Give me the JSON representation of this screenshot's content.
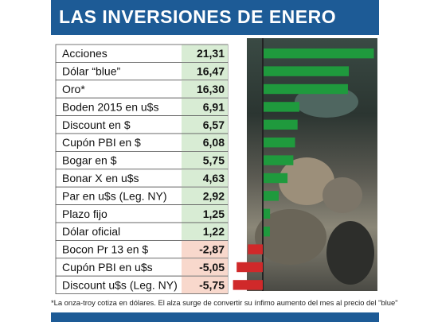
{
  "header": {
    "title": "LAS INVERSIONES DE ENERO"
  },
  "footnote": "*La onza-troy cotiza en dólares. El alza surge de convertir su ínfimo aumento del mes al precio del \"blue\"",
  "colors": {
    "header_bg": "#1d5b96",
    "positive_bar": "#1f9a3d",
    "negative_bar": "#d0292a",
    "positive_cell": "#d8ecd4",
    "negative_cell": "#f8d8cc"
  },
  "chart_data": {
    "type": "bar",
    "orientation": "horizontal",
    "categories": [
      "Acciones",
      "Dólar “blue”",
      "Oro*",
      "Boden 2015 en u$s",
      "Discount en $",
      "Cupón PBI en $",
      "Bogar en $",
      "Bonar X en u$s",
      "Par en u$s (Leg. NY)",
      "Plazo fijo",
      "Dólar oficial",
      "Bocon Pr 13 en $",
      "Cupón PBI en u$s",
      "Discount u$s (Leg. NY)"
    ],
    "values": [
      21.31,
      16.47,
      16.3,
      6.91,
      6.57,
      6.08,
      5.75,
      4.63,
      2.92,
      1.25,
      1.22,
      -2.87,
      -5.05,
      -5.75
    ],
    "value_labels": [
      "21,31",
      "16,47",
      "16,30",
      "6,91",
      "6,57",
      "6,08",
      "5,75",
      "4,63",
      "2,92",
      "1,25",
      "1,22",
      "-2,87",
      "-5,05",
      "-5,75"
    ],
    "title": "LAS INVERSIONES DE ENERO"
  }
}
